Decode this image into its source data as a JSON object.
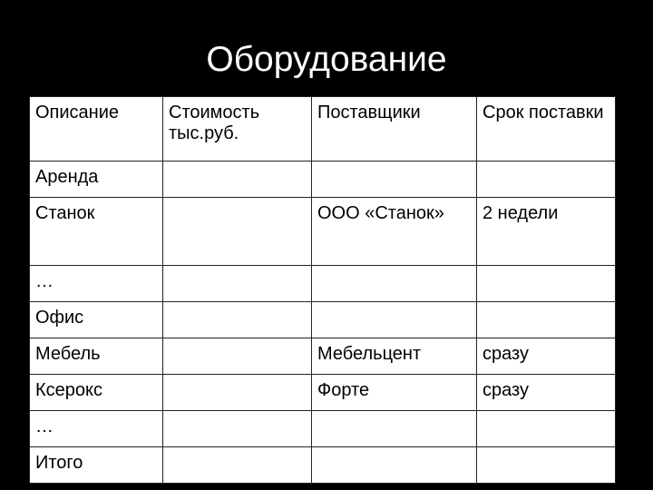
{
  "title": "Оборудование",
  "table": {
    "headers": [
      "Описание",
      "Стоимость тыс.руб.",
      "Поставщики",
      "Срок поставки"
    ],
    "rows": [
      [
        "Аренда",
        "",
        "",
        ""
      ],
      [
        "Станок",
        "",
        "ООО «Станок»",
        "2 недели"
      ],
      [
        "…",
        "",
        "",
        ""
      ],
      [
        "Офис",
        "",
        "",
        ""
      ],
      [
        "Мебель",
        "",
        "Мебельцент",
        "сразу"
      ],
      [
        "Ксерокс",
        "",
        "Форте",
        "сразу"
      ],
      [
        "…",
        "",
        "",
        ""
      ],
      [
        "Итого",
        "",
        "",
        ""
      ]
    ]
  }
}
